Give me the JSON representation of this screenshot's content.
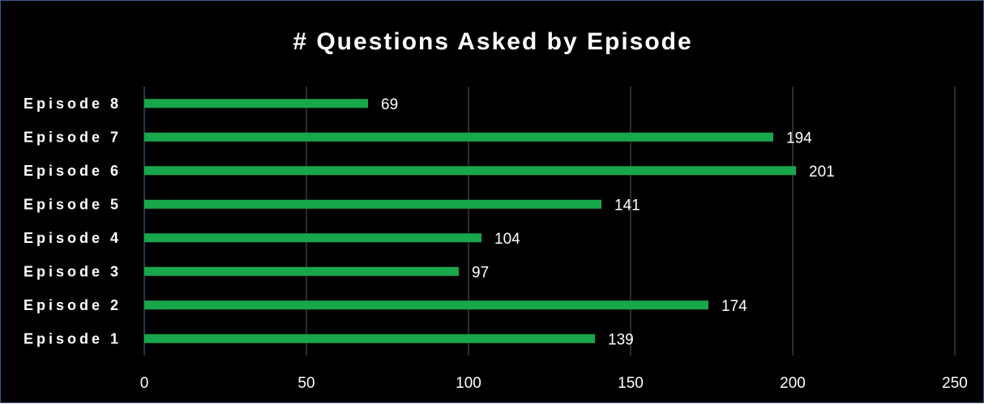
{
  "chart_data": {
    "type": "bar",
    "orientation": "horizontal",
    "title": "# Questions Asked by Episode",
    "xlabel": "",
    "ylabel": "",
    "categories": [
      "Episode 1",
      "Episode 2",
      "Episode 3",
      "Episode 4",
      "Episode 5",
      "Episode 6",
      "Episode 7",
      "Episode 8"
    ],
    "values": [
      139,
      174,
      97,
      104,
      141,
      201,
      194,
      69
    ],
    "xlim": [
      0,
      250
    ],
    "xticks": [
      "0",
      "50",
      "100",
      "150",
      "200",
      "250"
    ],
    "grid": "vertical",
    "legend": "none",
    "data_labels": true,
    "colors": {
      "background": "#000000",
      "bar": "#18a74b",
      "gridline": "#595959",
      "axis": "#4a6fa5",
      "text": "#ffffff"
    }
  }
}
